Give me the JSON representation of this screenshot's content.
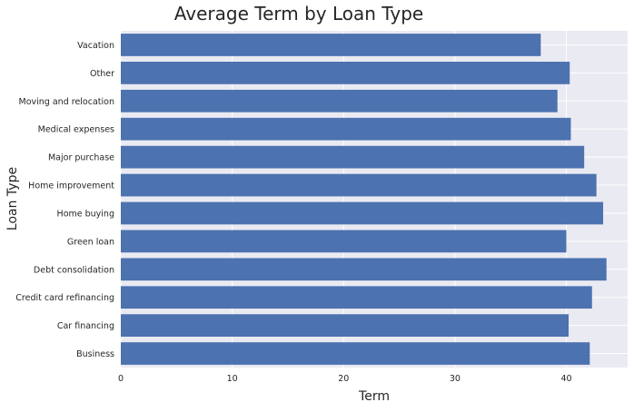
{
  "chart_data": {
    "type": "bar",
    "orientation": "horizontal",
    "title": "Average Term by Loan Type",
    "xlabel": "Term",
    "ylabel": "Loan Type",
    "xlim": [
      0,
      45.5
    ],
    "xticks": [
      0,
      10,
      20,
      30,
      40
    ],
    "grid": true,
    "categories": [
      "Business",
      "Car financing",
      "Credit card refinancing",
      "Debt consolidation",
      "Green loan",
      "Home buying",
      "Home improvement",
      "Major purchase",
      "Medical expenses",
      "Moving and relocation",
      "Other",
      "Vacation"
    ],
    "values": [
      42.1,
      40.2,
      42.3,
      43.6,
      40.0,
      43.3,
      42.7,
      41.6,
      40.4,
      39.2,
      40.3,
      37.7
    ],
    "colors": {
      "bar": "#4c72b0",
      "background": "#eaeaf2",
      "grid": "#ffffff",
      "text": "#262626"
    }
  }
}
